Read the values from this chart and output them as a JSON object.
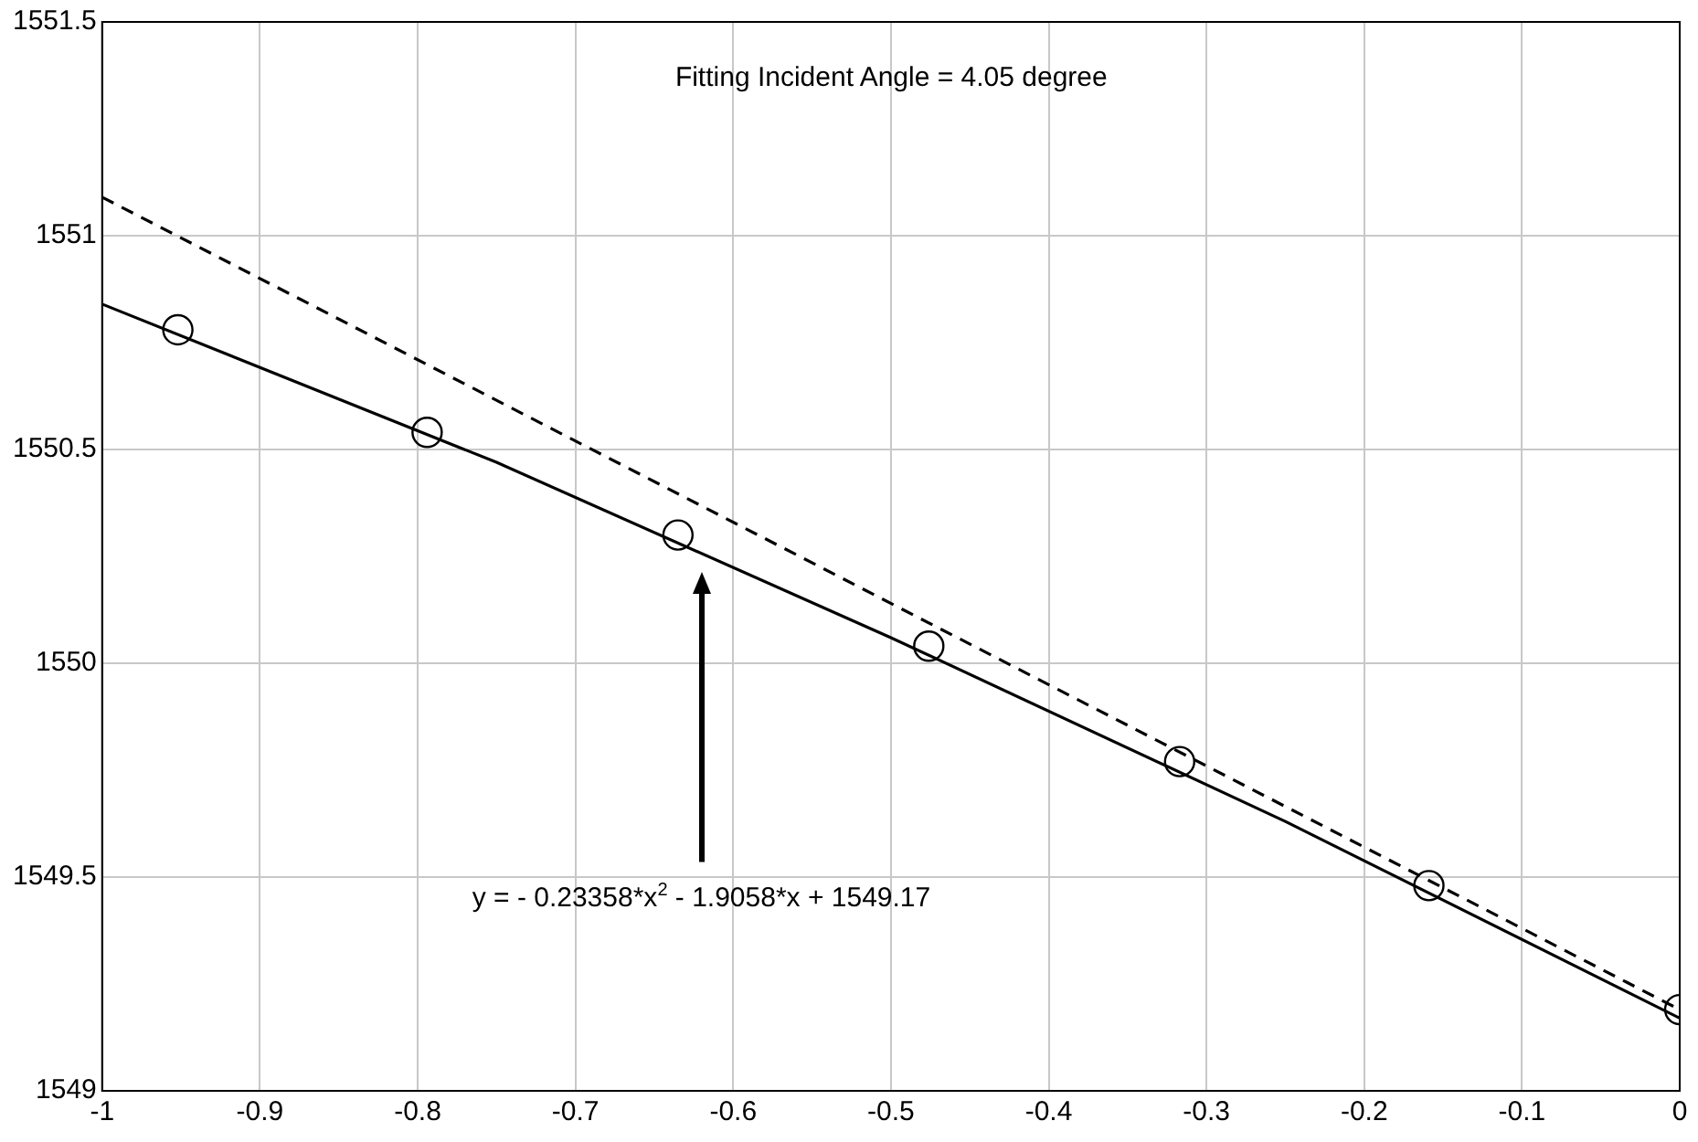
{
  "chart_data": {
    "type": "scatter",
    "annotations": [
      "Fitting Incident Angle = 4.05 degree",
      "y = - 0.23358*x$^{2}$ - 1.9058*x + 1549.17"
    ],
    "series": [
      {
        "color": "#000000",
        "marker": "circle",
        "x": [
          -0.952,
          -0.794,
          -0.635,
          -0.476,
          -0.317,
          -0.159,
          0
        ],
        "values": [
          1550.78,
          1550.54,
          1550.3,
          1550.04,
          1549.77,
          1549.48,
          1549.19
        ]
      },
      {
        "type": "line",
        "color": "#000000",
        "marker": "none",
        "line_style": "solid",
        "x": [
          -1,
          -0.75,
          -0.5,
          -0.25,
          0
        ],
        "values": [
          1550.84,
          1550.47,
          1550.06,
          1549.63,
          1549.17
        ]
      },
      {
        "type": "line",
        "color": "#000000",
        "marker": "none",
        "line_style": "dashed",
        "x": [
          -1,
          0
        ],
        "values": [
          1551.09,
          1549.19
        ]
      }
    ],
    "xlim": [
      -1,
      0
    ],
    "xticks": [
      -1,
      -0.9,
      -0.8,
      -0.7,
      -0.6,
      -0.5,
      -0.4,
      -0.3,
      -0.2,
      -0.1,
      0
    ],
    "ylim": [
      1549,
      1551.5
    ],
    "yticks": [
      1549,
      1549.5,
      1550,
      1550.5,
      1551,
      1551.5
    ],
    "grid": true,
    "legend": false
  }
}
